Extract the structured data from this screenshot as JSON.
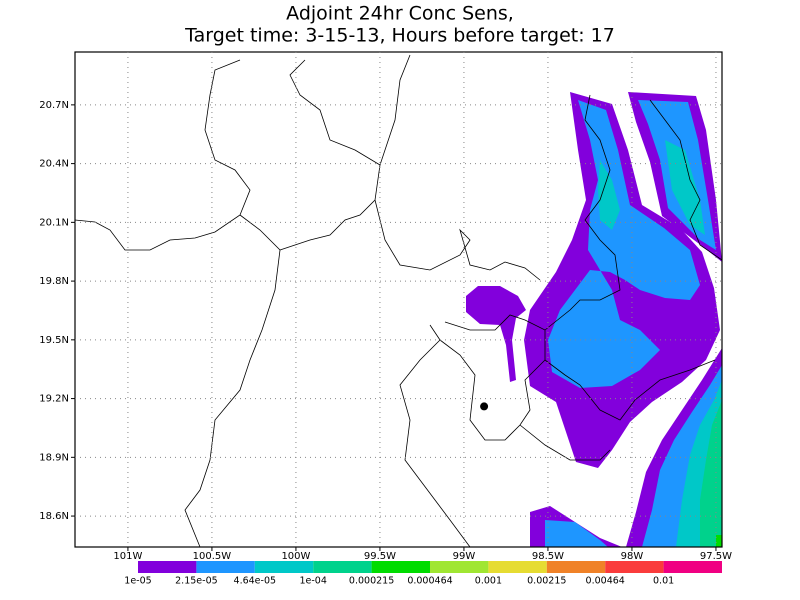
{
  "chart_data": {
    "type": "contour",
    "title": "Adjoint 24hr Conc Sens,",
    "subtitle": "Target time: 3-15-13, Hours before target: 17",
    "xlim": [
      -101.315,
      -97.464
    ],
    "ylim": [
      18.442,
      20.97
    ],
    "xticks": [
      {
        "value": -101,
        "label": "101W"
      },
      {
        "value": -100.5,
        "label": "100.5W"
      },
      {
        "value": -100,
        "label": "100W"
      },
      {
        "value": -99.5,
        "label": "99.5W"
      },
      {
        "value": -99,
        "label": "99W"
      },
      {
        "value": -98.5,
        "label": "98.5W"
      },
      {
        "value": -98,
        "label": "98W"
      },
      {
        "value": -97.5,
        "label": "97.5W"
      }
    ],
    "yticks": [
      {
        "value": 18.6,
        "label": "18.6N"
      },
      {
        "value": 18.9,
        "label": "18.9N"
      },
      {
        "value": 19.2,
        "label": "19.2N"
      },
      {
        "value": 19.5,
        "label": "19.5N"
      },
      {
        "value": 19.8,
        "label": "19.8N"
      },
      {
        "value": 20.1,
        "label": "20.1N"
      },
      {
        "value": 20.4,
        "label": "20.4N"
      },
      {
        "value": 20.7,
        "label": "20.7N"
      }
    ],
    "grid": true,
    "marker": {
      "lon": -98.88,
      "lat": 19.16
    },
    "colorbar": {
      "levels": [
        {
          "value": 1e-05,
          "label": "1e-05"
        },
        {
          "value": 2.15e-05,
          "label": "2.15e-05"
        },
        {
          "value": 4.64e-05,
          "label": "4.64e-05"
        },
        {
          "value": 0.0001,
          "label": "1e-04"
        },
        0.000215,
        0.000464,
        0.001,
        0.00215,
        0.00464,
        0.01
      ],
      "colors": [
        "#8200dc",
        "#1e96ff",
        "#00c8c8",
        "#00d28c",
        "#00dc00",
        "#a0e632",
        "#e6dc32",
        "#f08228",
        "#fa3c3c",
        "#f00082"
      ]
    }
  }
}
